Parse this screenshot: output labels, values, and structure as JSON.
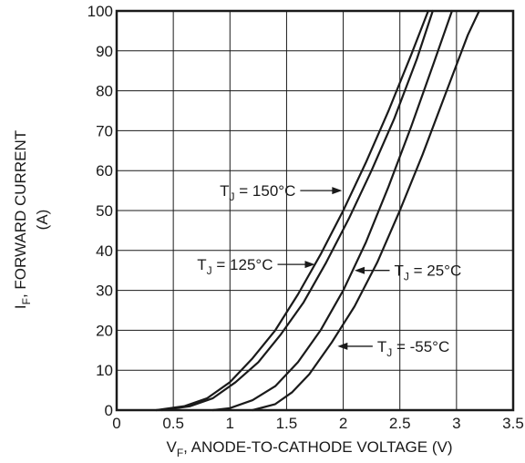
{
  "chart_data": {
    "type": "line",
    "x_axis": {
      "label_main": "V",
      "label_sub": "F",
      "label_rest": ", ANODE-TO-CATHODE VOLTAGE (V)",
      "range": [
        0,
        3.5
      ],
      "ticks": [
        0,
        0.5,
        1,
        1.5,
        2,
        2.5,
        3,
        3.5
      ],
      "tick_labels": [
        "0",
        "0.5",
        "1",
        "1.5",
        "2",
        "2.5",
        "3",
        "3.5"
      ]
    },
    "y_axis": {
      "label_main": "I",
      "label_sub": "F",
      "label_rest": ", FORWARD CURRENT",
      "label_line2": "(A)",
      "range": [
        0,
        100
      ],
      "ticks": [
        0,
        10,
        20,
        30,
        40,
        50,
        60,
        70,
        80,
        90,
        100
      ],
      "tick_labels": [
        "0",
        "10",
        "20",
        "30",
        "40",
        "50",
        "60",
        "70",
        "80",
        "90",
        "100"
      ]
    },
    "grid": true,
    "series": [
      {
        "name": "TJ = 150°C",
        "label_main": "T",
        "label_sub": "J",
        "label_rest": " = 150°C",
        "x": [
          0.35,
          0.6,
          0.8,
          1.0,
          1.2,
          1.4,
          1.6,
          1.8,
          2.0,
          2.2,
          2.4,
          2.6,
          2.75
        ],
        "y": [
          0,
          1,
          3,
          7,
          13,
          20,
          29,
          39,
          50,
          62,
          75,
          89,
          100
        ]
      },
      {
        "name": "TJ = 125°C",
        "label_main": "T",
        "label_sub": "J",
        "label_rest": " = 125°C",
        "x": [
          0.4,
          0.65,
          0.85,
          1.05,
          1.25,
          1.45,
          1.65,
          1.85,
          2.05,
          2.25,
          2.45,
          2.65,
          2.79
        ],
        "y": [
          0,
          1,
          3,
          7,
          12,
          19,
          27,
          37,
          48,
          60,
          73,
          88,
          100
        ]
      },
      {
        "name": "TJ = 25°C",
        "label_main": "T",
        "label_sub": "J",
        "label_rest": " = 25°C",
        "x": [
          0.85,
          1.0,
          1.2,
          1.4,
          1.6,
          1.8,
          2.0,
          2.2,
          2.4,
          2.6,
          2.8,
          2.96
        ],
        "y": [
          0,
          0.5,
          2.5,
          6,
          12,
          20,
          30,
          42,
          56,
          71,
          87,
          100
        ]
      },
      {
        "name": "TJ = -55°C",
        "label_main": "T",
        "label_sub": "J",
        "label_rest": " = -55°C",
        "x": [
          1.2,
          1.4,
          1.55,
          1.7,
          1.9,
          2.1,
          2.3,
          2.5,
          2.7,
          2.9,
          3.1,
          3.2
        ],
        "y": [
          0,
          1.5,
          4.5,
          9,
          17,
          26,
          37,
          50,
          64,
          79,
          94,
          100
        ]
      }
    ],
    "annotations": [
      {
        "series": 0,
        "text_x": 1.58,
        "text_y": 55,
        "point_x": 1.99,
        "point_y": 55,
        "side": "left"
      },
      {
        "series": 1,
        "text_x": 1.38,
        "text_y": 36.5,
        "point_x": 1.75,
        "point_y": 36.5,
        "side": "left"
      },
      {
        "series": 2,
        "text_x": 2.45,
        "text_y": 35,
        "point_x": 2.1,
        "point_y": 35,
        "side": "right"
      },
      {
        "series": 3,
        "text_x": 2.3,
        "text_y": 16,
        "point_x": 1.95,
        "point_y": 16,
        "side": "right"
      }
    ]
  }
}
